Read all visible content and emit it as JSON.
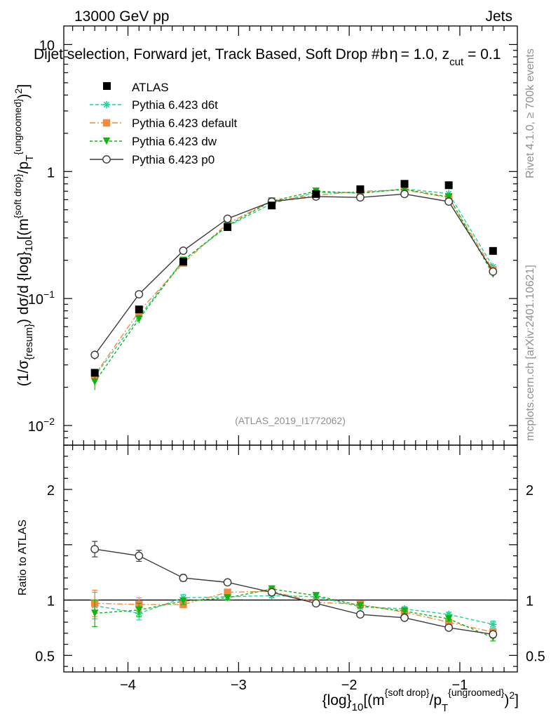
{
  "header": {
    "left": "13000 GeV pp",
    "right": "Jets",
    "title_main": "Dijet selection, Forward jet, Track Based, Soft Drop #b",
    "title_tail": "= 1.0, z",
    "title_sub": "cut",
    "title_end": "= 0.1"
  },
  "side": {
    "rivet": "Rivet 4.1.0, ≥ 700k events",
    "mcplots": "mcplots.cern.ch [arXiv:2401.10621]"
  },
  "analysis_tag": "(ATLAS_2019_I1772062)",
  "ylabel_main": {
    "p1": "(1/σ",
    "p1sub": "{resum}",
    "p2": ") dσ/d {log}",
    "p2sub": "10",
    "p3": "[(m",
    "p3sup": "{soft drop}",
    "p4": "/p",
    "p4sub": "T",
    "p4sup": "{ungroomed}",
    "p5": ")",
    "p5sup": "2",
    "p6": "]"
  },
  "ylabel_ratio": "Ratio to ATLAS",
  "xlabel": {
    "p1": "{log}",
    "p1sub": "10",
    "p2": "[(m",
    "p2sup": "{soft drop}",
    "p3": "/p",
    "p3sub": "T",
    "p3sup": "{ungroomed}",
    "p4": ")",
    "p4sup": "2",
    "p5": "]"
  },
  "colors": {
    "data": "#000000",
    "d6t": "#1fd39a",
    "default": "#f48b3c",
    "dw": "#13b313",
    "p0": "#3a3a3a",
    "grey": "#909090"
  },
  "chart_data": {
    "type": "line",
    "xlim": [
      -4.58,
      -0.48
    ],
    "ylim_main": [
      0.007,
      14
    ],
    "ylim_ratio": [
      0.35,
      2.4
    ],
    "yscale_main": "log",
    "legend_position": "top-left",
    "x_ticks": [
      {
        "value": -4,
        "label": "−4"
      },
      {
        "value": -3,
        "label": "−3"
      },
      {
        "value": -2,
        "label": "−2"
      },
      {
        "value": -1,
        "label": "−1"
      }
    ],
    "y_ticks_main": [
      {
        "value": 0.01,
        "base": "10",
        "exp": "−2"
      },
      {
        "value": 0.1,
        "base": "10",
        "exp": "−1"
      },
      {
        "value": 1,
        "base": "1",
        "exp": ""
      },
      {
        "value": 10,
        "base": "10",
        "exp": ""
      }
    ],
    "y_ticks_ratio": [
      {
        "value": 0.5,
        "label": "0.5"
      },
      {
        "value": 1,
        "label": "1"
      },
      {
        "value": 2,
        "label": "2"
      }
    ],
    "x": [
      -4.3,
      -3.9,
      -3.5,
      -3.1,
      -2.7,
      -2.3,
      -1.9,
      -1.5,
      -1.1,
      -0.7
    ],
    "data": {
      "name": "ATLAS",
      "values": [
        0.026,
        0.082,
        0.195,
        0.365,
        0.54,
        0.665,
        0.725,
        0.8,
        0.78,
        0.237
      ]
    },
    "series": [
      {
        "name": "Pythia 6.423 d6t",
        "key": "d6t",
        "marker": "star",
        "dash": "5,3",
        "values": [
          0.0245,
          0.072,
          0.2,
          0.37,
          0.56,
          0.685,
          0.68,
          0.73,
          0.67,
          0.178
        ],
        "errors": [
          0.003,
          0.005,
          0.006,
          0.008,
          0.01,
          0.01,
          0.01,
          0.012,
          0.012,
          0.004
        ],
        "ratio": [
          0.95,
          0.88,
          1.02,
          1.03,
          1.04,
          1.03,
          0.94,
          0.92,
          0.87,
          0.78
        ],
        "ratio_err": [
          0.12,
          0.06,
          0.03,
          0.02,
          0.02,
          0.02,
          0.02,
          0.02,
          0.02,
          0.03
        ]
      },
      {
        "name": "Pythia 6.423 default",
        "key": "default",
        "marker": "square",
        "dash": "8,3,2,3",
        "values": [
          0.025,
          0.079,
          0.19,
          0.39,
          0.585,
          0.65,
          0.7,
          0.715,
          0.625,
          0.168
        ],
        "errors": [
          0.003,
          0.005,
          0.006,
          0.008,
          0.01,
          0.01,
          0.01,
          0.012,
          0.012,
          0.004
        ],
        "ratio": [
          0.97,
          0.96,
          0.96,
          1.07,
          1.08,
          0.98,
          0.96,
          0.89,
          0.8,
          0.71
        ],
        "ratio_err": [
          0.12,
          0.06,
          0.03,
          0.02,
          0.02,
          0.02,
          0.02,
          0.02,
          0.02,
          0.03
        ]
      },
      {
        "name": "Pythia 6.423 dw",
        "key": "dw",
        "marker": "triangle",
        "dash": "4,3",
        "values": [
          0.022,
          0.069,
          0.2,
          0.375,
          0.585,
          0.7,
          0.675,
          0.725,
          0.63,
          0.155
        ],
        "errors": [
          0.003,
          0.005,
          0.006,
          0.008,
          0.01,
          0.01,
          0.01,
          0.012,
          0.012,
          0.004
        ],
        "ratio": [
          0.88,
          0.91,
          0.99,
          1.02,
          1.1,
          1.04,
          0.95,
          0.9,
          0.83,
          0.66
        ],
        "ratio_err": [
          0.12,
          0.06,
          0.03,
          0.02,
          0.02,
          0.02,
          0.02,
          0.02,
          0.02,
          0.03
        ]
      },
      {
        "name": "Pythia 6.423 p0",
        "key": "p0",
        "marker": "circle",
        "dash": "",
        "values": [
          0.036,
          0.108,
          0.238,
          0.425,
          0.58,
          0.635,
          0.625,
          0.665,
          0.58,
          0.163
        ],
        "errors": [
          0.003,
          0.005,
          0.006,
          0.008,
          0.01,
          0.01,
          0.01,
          0.012,
          0.012,
          0.004
        ],
        "ratio": [
          1.46,
          1.4,
          1.2,
          1.16,
          1.07,
          0.97,
          0.87,
          0.84,
          0.75,
          0.69
        ],
        "ratio_err": [
          0.07,
          0.05,
          0.03,
          0.02,
          0.02,
          0.02,
          0.02,
          0.02,
          0.02,
          0.03
        ]
      }
    ]
  }
}
